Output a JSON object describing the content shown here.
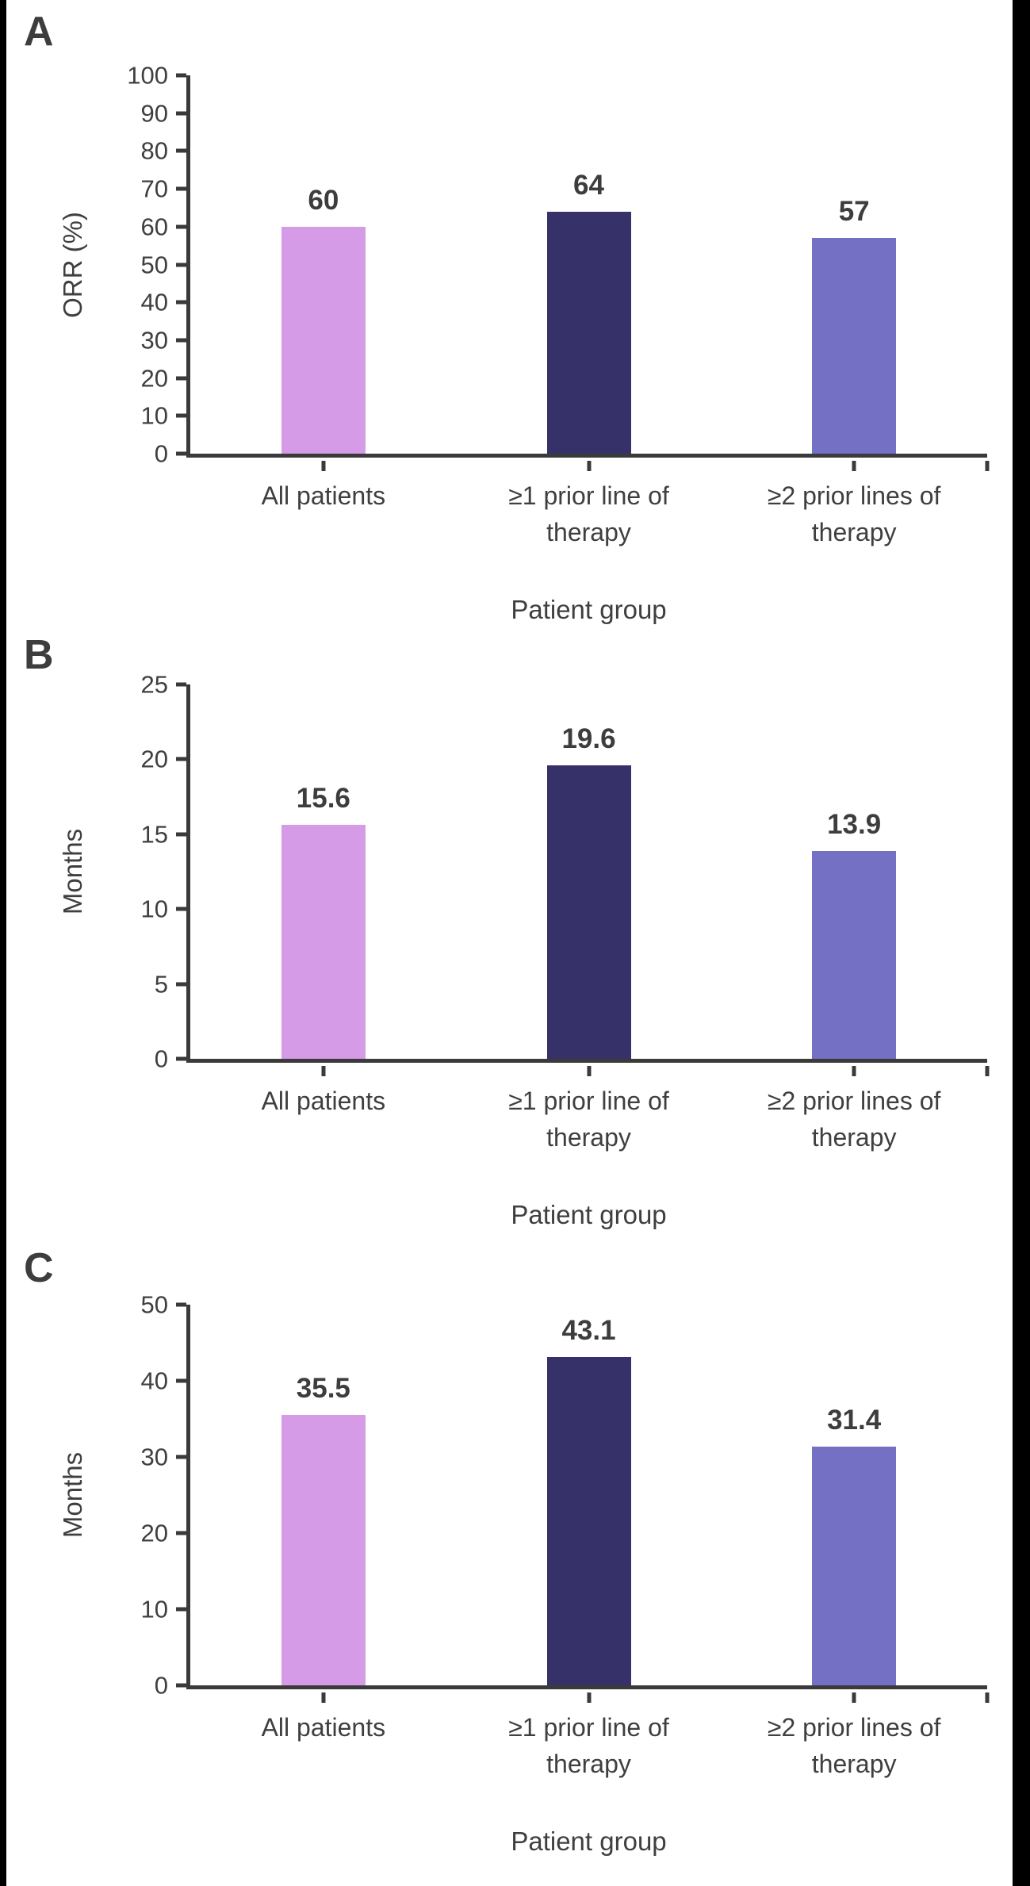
{
  "page": {
    "background": "#ffffff",
    "left_border_color": "#000000",
    "right_border_color": "#000000",
    "axis_color": "#3a3a3a",
    "text_color": "#3f3f3f"
  },
  "chart_data": [
    {
      "type": "bar",
      "panel_label": "A",
      "categories": [
        "All patients",
        "≥1 prior line of therapy",
        "≥2 prior lines of therapy"
      ],
      "values": [
        60,
        64,
        57
      ],
      "value_labels": [
        "60",
        "64",
        "57"
      ],
      "bar_colors": [
        "#d69be7",
        "#37316a",
        "#7470c4"
      ],
      "xlabel": "Patient group",
      "ylabel": "ORR (%)",
      "ylim": [
        0,
        100
      ],
      "yticks": [
        0,
        10,
        20,
        30,
        40,
        50,
        60,
        70,
        80,
        90,
        100
      ],
      "grid": false,
      "legend": "none"
    },
    {
      "type": "bar",
      "panel_label": "B",
      "categories": [
        "All patients",
        "≥1 prior line of therapy",
        "≥2 prior lines of therapy"
      ],
      "values": [
        15.6,
        19.6,
        13.9
      ],
      "value_labels": [
        "15.6",
        "19.6",
        "13.9"
      ],
      "bar_colors": [
        "#d69be7",
        "#37316a",
        "#7470c4"
      ],
      "xlabel": "Patient group",
      "ylabel": "Months",
      "ylim": [
        0,
        25
      ],
      "yticks": [
        0,
        5,
        10,
        15,
        20,
        25
      ],
      "grid": false,
      "legend": "none"
    },
    {
      "type": "bar",
      "panel_label": "C",
      "categories": [
        "All patients",
        "≥1 prior line of therapy",
        "≥2 prior lines of therapy"
      ],
      "values": [
        35.5,
        43.1,
        31.4
      ],
      "value_labels": [
        "35.5",
        "43.1",
        "31.4"
      ],
      "bar_colors": [
        "#d69be7",
        "#37316a",
        "#7470c4"
      ],
      "xlabel": "Patient group",
      "ylabel": "Months",
      "ylim": [
        0,
        50
      ],
      "yticks": [
        0,
        10,
        20,
        30,
        40,
        50
      ],
      "grid": false,
      "legend": "none"
    }
  ]
}
